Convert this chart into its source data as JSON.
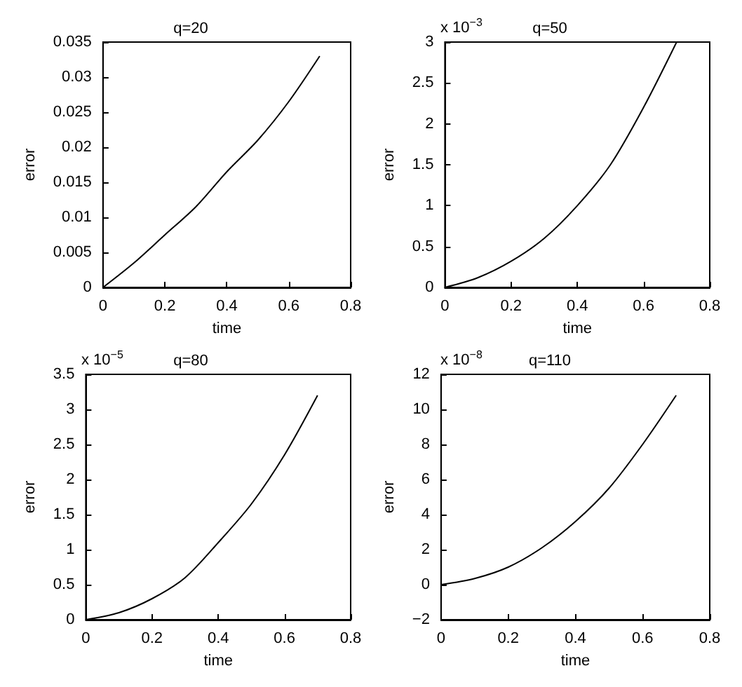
{
  "chart_data": [
    {
      "type": "line",
      "title": "q=20",
      "xlabel": "time",
      "ylabel": "error",
      "x": [
        0,
        0.1,
        0.2,
        0.3,
        0.4,
        0.5,
        0.6,
        0.7
      ],
      "series": [
        {
          "color": "#000000",
          "values": [
            0,
            0.0035,
            0.0075,
            0.0115,
            0.0165,
            0.021,
            0.0265,
            0.033
          ]
        }
      ],
      "xlim": [
        0,
        0.8
      ],
      "xticks": [
        0,
        0.2,
        0.4,
        0.6,
        0.8
      ],
      "ylim": [
        0,
        0.035
      ],
      "yticks": [
        0,
        0.005,
        0.01,
        0.015,
        0.02,
        0.025,
        0.03,
        0.035
      ],
      "grid": false
    },
    {
      "type": "line",
      "title": "q=50",
      "xlabel": "time",
      "ylabel": "error",
      "annotations": [
        "x 10$^{−3}$"
      ],
      "x": [
        0,
        0.1,
        0.2,
        0.3,
        0.4,
        0.5,
        0.6,
        0.7
      ],
      "series": [
        {
          "color": "#000000",
          "values": [
            0,
            0.12,
            0.32,
            0.6,
            1.0,
            1.5,
            2.2,
            3.0
          ]
        }
      ],
      "xlim": [
        0,
        0.8
      ],
      "xticks": [
        0,
        0.2,
        0.4,
        0.6,
        0.8
      ],
      "ylim": [
        0,
        3
      ],
      "yticks": [
        0,
        0.5,
        1,
        1.5,
        2,
        2.5,
        3
      ],
      "grid": false
    },
    {
      "type": "line",
      "title": "q=80",
      "xlabel": "time",
      "ylabel": "error",
      "annotations": [
        "x 10$^{−5}$"
      ],
      "x": [
        0,
        0.1,
        0.2,
        0.3,
        0.4,
        0.5,
        0.6,
        0.7
      ],
      "series": [
        {
          "color": "#000000",
          "values": [
            0,
            0.1,
            0.3,
            0.6,
            1.1,
            1.65,
            2.35,
            3.2
          ]
        }
      ],
      "xlim": [
        0,
        0.8
      ],
      "xticks": [
        0,
        0.2,
        0.4,
        0.6,
        0.8
      ],
      "ylim": [
        0,
        3.5
      ],
      "yticks": [
        0,
        0.5,
        1,
        1.5,
        2,
        2.5,
        3,
        3.5
      ],
      "grid": false
    },
    {
      "type": "line",
      "title": "q=110",
      "xlabel": "time",
      "ylabel": "error",
      "annotations": [
        "x 10$^{−8}$"
      ],
      "x": [
        0,
        0.1,
        0.2,
        0.3,
        0.4,
        0.5,
        0.6,
        0.7
      ],
      "series": [
        {
          "color": "#000000",
          "values": [
            0,
            0.35,
            1.0,
            2.1,
            3.6,
            5.5,
            8.0,
            10.8
          ]
        }
      ],
      "xlim": [
        0,
        0.8
      ],
      "xticks": [
        0,
        0.2,
        0.4,
        0.6,
        0.8
      ],
      "ylim": [
        -2,
        12
      ],
      "yticks": [
        {
          "value": -2,
          "label": "−2"
        },
        0,
        2,
        4,
        6,
        8,
        10,
        12
      ],
      "grid": false
    }
  ]
}
